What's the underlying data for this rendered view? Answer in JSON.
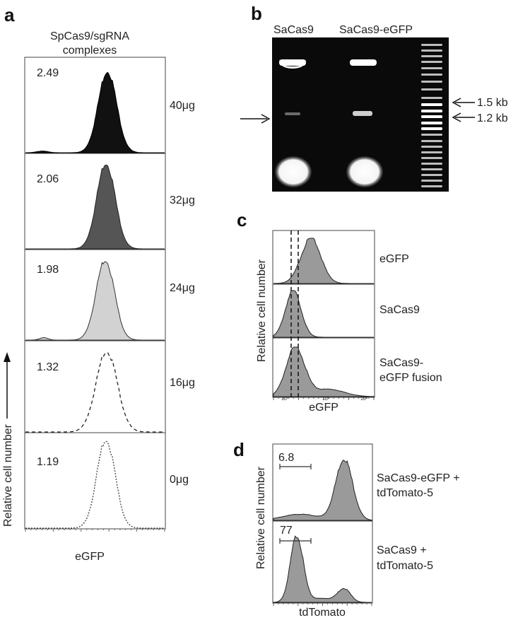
{
  "panel_a": {
    "letter": "a",
    "title_line1": "SpCas9/sgRNA",
    "title_line2": "complexes",
    "ylabel": "Relative cell number",
    "xlabel": "eGFP",
    "rows": [
      {
        "value": "2.49",
        "dose": "40μg",
        "style": "solid-black"
      },
      {
        "value": "2.06",
        "dose": "32μg",
        "style": "solid-darkgray"
      },
      {
        "value": "1.98",
        "dose": "24μg",
        "style": "solid-lightgray"
      },
      {
        "value": "1.32",
        "dose": "16μg",
        "style": "dashed"
      },
      {
        "value": "1.19",
        "dose": "0μg",
        "style": "dotted"
      }
    ]
  },
  "panel_b": {
    "letter": "b",
    "lane1": "SaCas9",
    "lane2": "SaCas9-eGFP",
    "marker1": "1.5 kb",
    "marker2": "1.2 kb"
  },
  "panel_c": {
    "letter": "c",
    "ylabel": "Relative cell number",
    "xlabel": "eGFP",
    "rows": [
      {
        "label_line1": "eGFP",
        "label_line2": ""
      },
      {
        "label_line1": "SaCas9",
        "label_line2": ""
      },
      {
        "label_line1": "SaCas9-",
        "label_line2": "eGFP fusion"
      }
    ]
  },
  "panel_d": {
    "letter": "d",
    "ylabel": "Relative cell number",
    "xlabel": "tdTomato",
    "rows": [
      {
        "value": "6.8",
        "label_line1": "SaCas9-eGFP +",
        "label_line2": "tdTomato-5"
      },
      {
        "value": "77",
        "label_line1": "SaCas9 +",
        "label_line2": "tdTomato-5"
      }
    ]
  },
  "colors": {
    "black_fill": "#111111",
    "dark_fill": "#555555",
    "light_fill": "#d2d2d2",
    "hist_fill": "#9a9a9a",
    "gel_bg": "#0a0a0a",
    "band": "#ffffff"
  }
}
